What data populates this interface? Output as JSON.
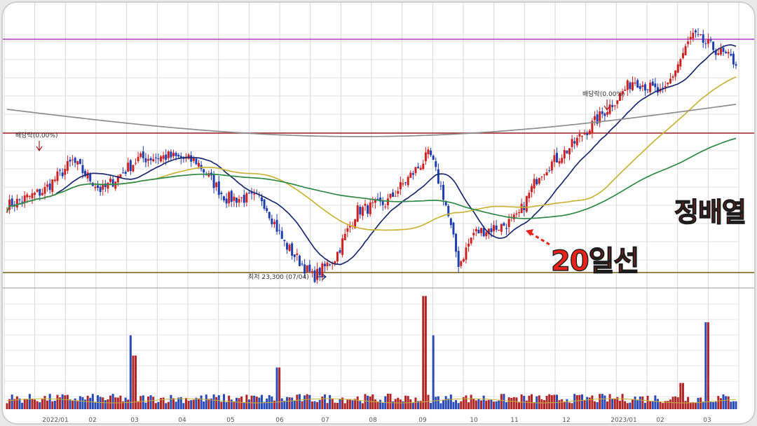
{
  "chart_data": {
    "type": "candlestick",
    "title": "",
    "xlabel": "",
    "ylabel": "",
    "x_tick_labels": [
      "2022/01",
      "02",
      "03",
      "04",
      "05",
      "06",
      "07",
      "08",
      "09",
      "10",
      "11",
      "12",
      "2023/01",
      "02",
      "03"
    ],
    "series": [
      {
        "name": "",
        "color": "#1c2a6e",
        "role": "ma-short"
      },
      {
        "name": "",
        "color": "#c9b43a",
        "role": "ma-mid"
      },
      {
        "name": "",
        "color": "#2e8a45",
        "role": "ma-long"
      },
      {
        "name": "",
        "color": "#8e8e8e",
        "role": "ma-longest"
      }
    ],
    "price_path_keyframes": [
      {
        "x": 0.0,
        "y": 0.27
      },
      {
        "x": 0.05,
        "y": 0.33
      },
      {
        "x": 0.09,
        "y": 0.45
      },
      {
        "x": 0.13,
        "y": 0.33
      },
      {
        "x": 0.18,
        "y": 0.46
      },
      {
        "x": 0.22,
        "y": 0.47
      },
      {
        "x": 0.26,
        "y": 0.45
      },
      {
        "x": 0.3,
        "y": 0.3
      },
      {
        "x": 0.35,
        "y": 0.3
      },
      {
        "x": 0.38,
        "y": 0.12
      },
      {
        "x": 0.42,
        "y": -0.02
      },
      {
        "x": 0.45,
        "y": 0.06
      },
      {
        "x": 0.48,
        "y": 0.25
      },
      {
        "x": 0.52,
        "y": 0.28
      },
      {
        "x": 0.55,
        "y": 0.38
      },
      {
        "x": 0.58,
        "y": 0.48
      },
      {
        "x": 0.6,
        "y": 0.3
      },
      {
        "x": 0.62,
        "y": 0.03
      },
      {
        "x": 0.64,
        "y": 0.16
      },
      {
        "x": 0.68,
        "y": 0.19
      },
      {
        "x": 0.7,
        "y": 0.22
      },
      {
        "x": 0.73,
        "y": 0.4
      },
      {
        "x": 0.77,
        "y": 0.5
      },
      {
        "x": 0.81,
        "y": 0.62
      },
      {
        "x": 0.86,
        "y": 0.78
      },
      {
        "x": 0.9,
        "y": 0.72
      },
      {
        "x": 0.94,
        "y": 0.96
      },
      {
        "x": 1.0,
        "y": 0.85
      }
    ],
    "candle_colors": {
      "up": "#cc2222",
      "down": "#1f3fb0"
    },
    "volume_spikes": [
      {
        "x": 0.172,
        "v": 0.62
      },
      {
        "x": 0.175,
        "v": 0.45
      },
      {
        "x": 0.372,
        "v": 0.35
      },
      {
        "x": 0.573,
        "v": 0.95
      },
      {
        "x": 0.585,
        "v": 0.62
      },
      {
        "x": 0.96,
        "v": 0.73
      },
      {
        "x": 0.925,
        "v": 0.22
      }
    ],
    "grid": true,
    "horizontal_levels": [
      {
        "name": "",
        "color": "#b43cc8"
      },
      {
        "name": "",
        "color": "#a02020"
      },
      {
        "name": "",
        "color": "#7a5a10"
      }
    ]
  },
  "annotations": {
    "dividend_left": "배당락(0.00%)",
    "dividend_right": "배당락(0.00%)",
    "low_marker": "최저 23,300 (07/04)",
    "label_ma20": "20일선",
    "label_alignment": "정배열"
  },
  "colors": {
    "annotation_text": "#e8221b",
    "annotation_outline": "#1c1c1c",
    "arrow": "#e8221b"
  }
}
